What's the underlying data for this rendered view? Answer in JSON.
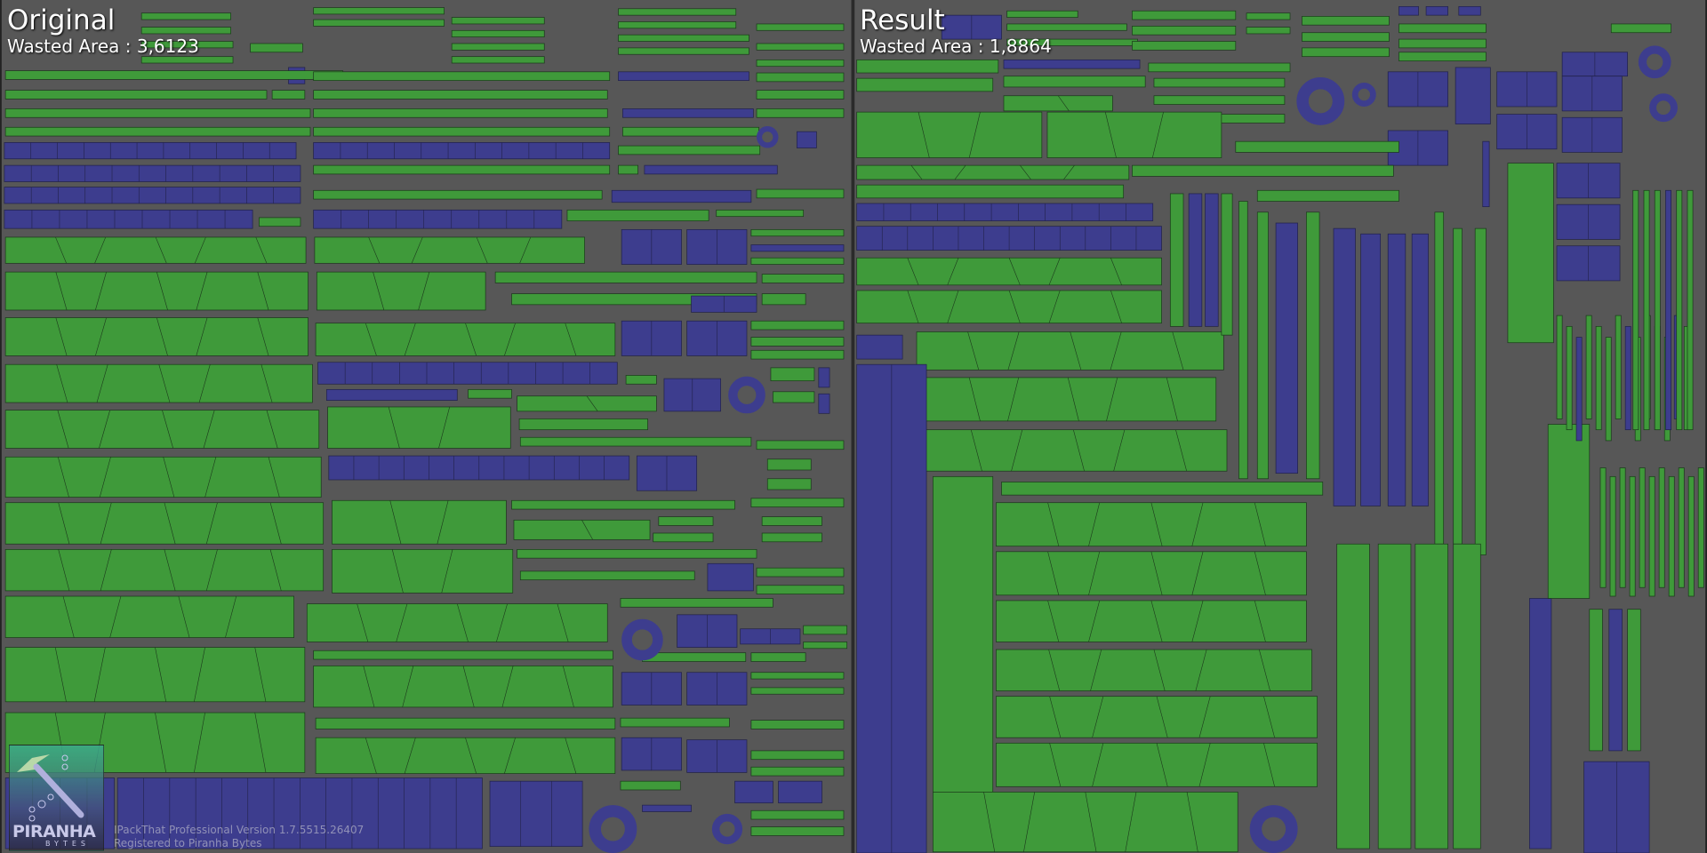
{
  "panels": {
    "original": {
      "title": "Original",
      "wasted_label": "Wasted Area : 3,6123"
    },
    "result": {
      "title": "Result",
      "wasted_label": "Wasted Area : 1,8864"
    }
  },
  "footer": {
    "version": "IPackThat Professional Version 1.7.5515.26407",
    "registered": "Registered to Piranha Bytes"
  },
  "logo": {
    "name": "PIRANHA",
    "sub": "BYTES"
  },
  "colors": {
    "background": "#575757",
    "uv_green": "#3f9a3a",
    "uv_blue": "#3d3d8e",
    "divider": "#2a2a2a",
    "edge": "#1c3a1c"
  }
}
